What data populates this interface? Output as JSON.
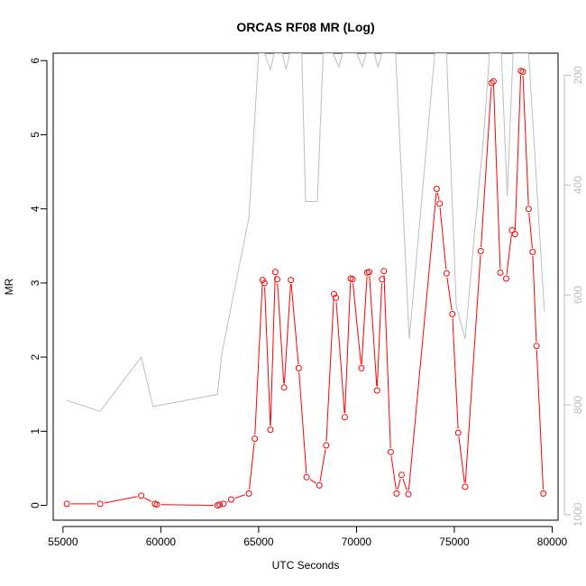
{
  "chart_data": {
    "type": "line",
    "title": "ORCAS RF08 MR (Log)",
    "xlabel": "UTC Seconds",
    "ylabel": "MR",
    "xlim": [
      54500,
      80300
    ],
    "ylim": [
      -0.2,
      6.1
    ],
    "y2lim": [
      1010,
      160
    ],
    "x_ticks": [
      55000,
      60000,
      65000,
      70000,
      75000,
      80000
    ],
    "y_ticks": [
      0,
      1,
      2,
      3,
      4,
      5,
      6
    ],
    "y2_ticks": [
      200,
      400,
      600,
      800,
      1000
    ],
    "colors": {
      "mr": "#ff0000",
      "pressure": "#bebebe",
      "axis": "#000000",
      "axis_right": "#bebebe"
    },
    "series": [
      {
        "key": "mr",
        "axis": "left",
        "markers": true,
        "points": [
          [
            55200,
            0.02
          ],
          [
            56900,
            0.02
          ],
          [
            59000,
            0.13
          ],
          [
            59700,
            0.02
          ],
          [
            59800,
            0.01
          ],
          [
            62900,
            0.0
          ],
          [
            63000,
            0.01
          ],
          [
            63200,
            0.02
          ],
          [
            63600,
            0.08
          ],
          [
            64500,
            0.16
          ],
          [
            64800,
            0.9
          ],
          [
            65200,
            3.04
          ],
          [
            65300,
            3.0
          ],
          [
            65600,
            1.02
          ],
          [
            65850,
            3.15
          ],
          [
            65950,
            3.05
          ],
          [
            66300,
            1.59
          ],
          [
            66650,
            3.04
          ],
          [
            67050,
            1.85
          ],
          [
            67450,
            0.38
          ],
          [
            68100,
            0.27
          ],
          [
            68450,
            0.81
          ],
          [
            68850,
            2.85
          ],
          [
            68950,
            2.8
          ],
          [
            69400,
            1.19
          ],
          [
            69700,
            3.06
          ],
          [
            69800,
            3.05
          ],
          [
            70250,
            1.85
          ],
          [
            70550,
            3.14
          ],
          [
            70650,
            3.15
          ],
          [
            71050,
            1.55
          ],
          [
            71300,
            3.05
          ],
          [
            71400,
            3.16
          ],
          [
            71750,
            0.72
          ],
          [
            72050,
            0.16
          ],
          [
            72300,
            0.41
          ],
          [
            72650,
            0.15
          ],
          [
            74100,
            4.27
          ],
          [
            74250,
            4.07
          ],
          [
            74600,
            3.13
          ],
          [
            74900,
            2.58
          ],
          [
            75200,
            0.98
          ],
          [
            75550,
            0.25
          ],
          [
            76350,
            3.43
          ],
          [
            76900,
            5.7
          ],
          [
            77000,
            5.72
          ],
          [
            77350,
            3.14
          ],
          [
            77650,
            3.06
          ],
          [
            77950,
            3.71
          ],
          [
            78100,
            3.66
          ],
          [
            78400,
            5.86
          ],
          [
            78500,
            5.85
          ],
          [
            78800,
            4.0
          ],
          [
            79000,
            3.42
          ],
          [
            79200,
            2.15
          ],
          [
            79550,
            0.16
          ]
        ]
      },
      {
        "key": "pressure",
        "axis": "right",
        "markers": false,
        "points": [
          [
            55200,
            792
          ],
          [
            56900,
            812
          ],
          [
            59000,
            713
          ],
          [
            59600,
            803
          ],
          [
            62900,
            781
          ],
          [
            63100,
            710
          ],
          [
            63600,
            620
          ],
          [
            64500,
            460
          ],
          [
            65000,
            160
          ],
          [
            65300,
            160
          ],
          [
            65600,
            190
          ],
          [
            65800,
            160
          ],
          [
            66200,
            160
          ],
          [
            66400,
            190
          ],
          [
            66600,
            160
          ],
          [
            67200,
            160
          ],
          [
            67400,
            430
          ],
          [
            68000,
            430
          ],
          [
            68300,
            160
          ],
          [
            68600,
            160
          ],
          [
            68800,
            160
          ],
          [
            69100,
            185
          ],
          [
            69300,
            160
          ],
          [
            70000,
            160
          ],
          [
            70300,
            185
          ],
          [
            70500,
            160
          ],
          [
            70900,
            160
          ],
          [
            71100,
            185
          ],
          [
            71300,
            160
          ],
          [
            72000,
            160
          ],
          [
            72700,
            680
          ],
          [
            74000,
            160
          ],
          [
            74600,
            160
          ],
          [
            75100,
            620
          ],
          [
            75550,
            680
          ],
          [
            76000,
            500
          ],
          [
            76500,
            310
          ],
          [
            76800,
            160
          ],
          [
            77400,
            160
          ],
          [
            77700,
            420
          ],
          [
            78000,
            160
          ],
          [
            78800,
            160
          ],
          [
            79600,
            630
          ]
        ]
      }
    ]
  }
}
